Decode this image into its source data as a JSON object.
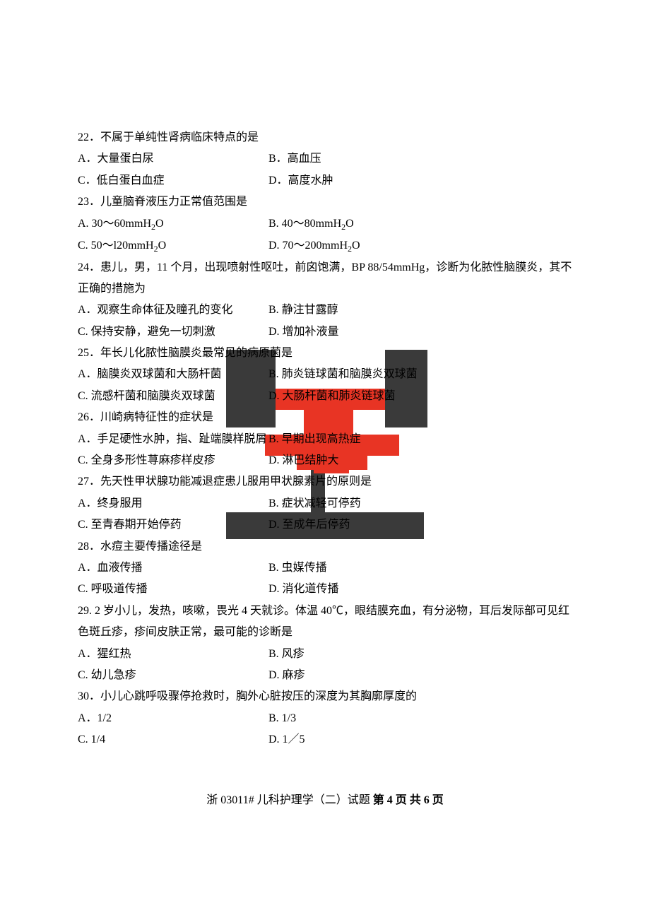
{
  "questions": [
    {
      "num": "22",
      "text": "22．不属于单纯性肾病临床特点的是",
      "options": [
        {
          "label": "A．大量蛋白尿",
          "label2": "B．高血压"
        },
        {
          "label": "C．低白蛋白血症",
          "label2": "D．高度水肿"
        }
      ]
    },
    {
      "num": "23",
      "text": "23．儿童脑脊液压力正常值范围是",
      "options": [
        {
          "label": "A. 30～60mmH",
          "sub": "2",
          "suffix": "O",
          "label2": "B. 40～80mmH",
          "sub2": "2",
          "suffix2": "O"
        },
        {
          "label": "C. 50～l20mmH",
          "sub": "2",
          "suffix": "O",
          "label2": "D. 70～200mmH",
          "sub2": "2",
          "suffix2": "O"
        }
      ]
    },
    {
      "num": "24",
      "text": "24．患儿，男，11 个月，出现喷射性呕吐，前囟饱满，BP 88/54mmHg，诊断为化脓性脑膜炎，其不正确的措施为",
      "options": [
        {
          "label": "A．观察生命体征及瞳孔的变化",
          "label2": "B. 静注甘露醇"
        },
        {
          "label": "C. 保持安静，避免一切刺激",
          "label2": "D. 增加补液量"
        }
      ]
    },
    {
      "num": "25",
      "text": "25．年长儿化脓性脑膜炎最常见的病原菌是",
      "options": [
        {
          "label": "A．脑膜炎双球菌和大肠杆菌",
          "label2": "B. 肺炎链球菌和脑膜炎双球菌"
        },
        {
          "label": "C. 流感杆菌和脑膜炎双球菌",
          "label2": "D. 大肠杆菌和肺炎链球菌"
        }
      ]
    },
    {
      "num": "26",
      "text": "26．川崎病特征性的症状是",
      "options": [
        {
          "label": "A．手足硬性水肿，指、趾端膜样脱屑",
          "label2": "B. 早期出现高热症"
        },
        {
          "label": "C. 全身多形性荨麻疹样皮疹",
          "label2": "D. 淋巴结肿大"
        }
      ]
    },
    {
      "num": "27",
      "text": "27．先天性甲状腺功能减退症患儿服用甲状腺素片的原则是",
      "options": [
        {
          "label": "A．终身服用",
          "label2": "B. 症状减轻可停药"
        },
        {
          "label": "C. 至青春期开始停药",
          "label2": "D. 至成年后停药"
        }
      ]
    },
    {
      "num": "28",
      "text": "28．水痘主要传播途径是",
      "options": [
        {
          "label": "A．血液传播",
          "label2": "B. 虫媒传播"
        },
        {
          "label": "C. 呼吸道传播",
          "label2": "D. 消化道传播"
        }
      ]
    },
    {
      "num": "29",
      "text": "29. 2 岁小儿，发热，咳嗽，畏光 4 天就诊。体温 40℃，眼结膜充血，有分泌物，耳后发际部可见红色斑丘疹，疹间皮肤正常，最可能的诊断是",
      "options": [
        {
          "label": "A．猩红热",
          "label2": "B. 风疹"
        },
        {
          "label": "C. 幼儿急疹",
          "label2": "D. 麻疹"
        }
      ]
    },
    {
      "num": "30",
      "text": "30．小儿心跳呼吸骤停抢救时，胸外心脏按压的深度为其胸廓厚度的",
      "options": [
        {
          "label": "A．1/2",
          "label2": "B. 1/3"
        },
        {
          "label": "C. 1/4",
          "label2": "D. 1／5"
        }
      ]
    }
  ],
  "footer": {
    "prefix": "浙 03011# 儿科护理学（二）试题 ",
    "page": "第 4 页 共 6 页"
  }
}
